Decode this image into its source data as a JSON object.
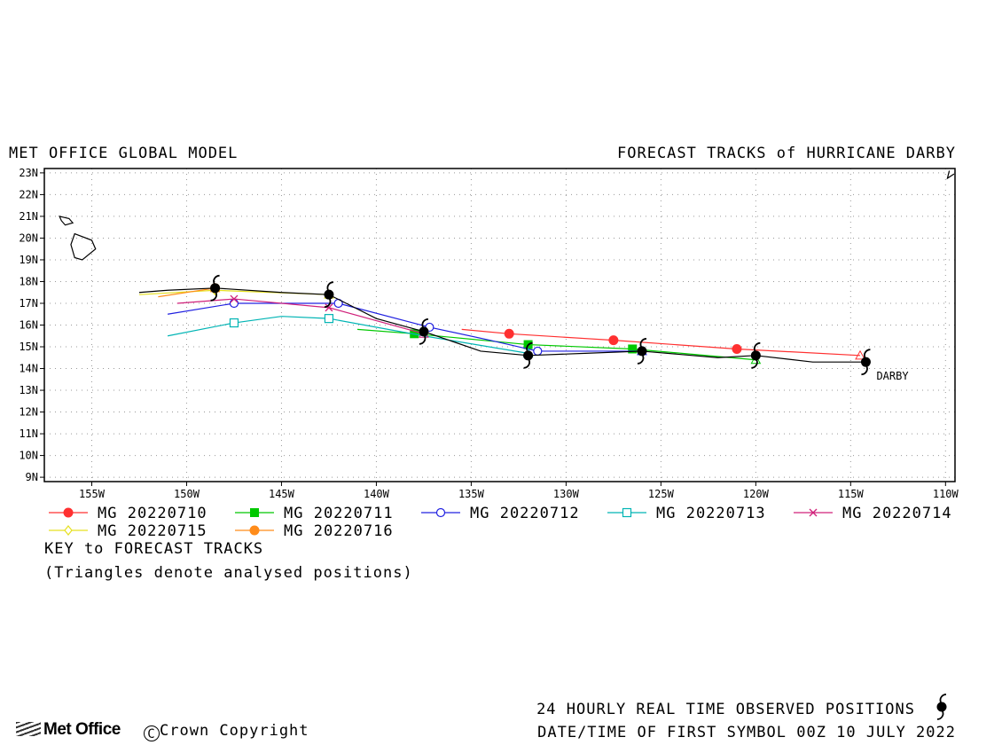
{
  "header": {
    "left_title": "MET OFFICE GLOBAL MODEL",
    "right_title": "FORECAST TRACKS of HURRICANE DARBY"
  },
  "map": {
    "lon_range": [
      -157.5,
      -109.5
    ],
    "lat_range": [
      8.8,
      23.2
    ],
    "lat_ticks": [
      "23N",
      "22N",
      "21N",
      "20N",
      "19N",
      "18N",
      "17N",
      "16N",
      "15N",
      "14N",
      "13N",
      "12N",
      "11N",
      "10N",
      "9N"
    ],
    "lon_ticks": [
      "155W",
      "150W",
      "145W",
      "140W",
      "135W",
      "130W",
      "125W",
      "120W",
      "115W",
      "110W"
    ],
    "grid": true,
    "storm_label": "DARBY"
  },
  "observed_track": {
    "color": "#000000",
    "points": [
      [
        -114.2,
        14.3
      ],
      [
        -117,
        14.3
      ],
      [
        -120,
        14.6
      ],
      [
        -122,
        14.5
      ],
      [
        -126,
        14.8
      ],
      [
        -129,
        14.7
      ],
      [
        -132,
        14.6
      ],
      [
        -134.5,
        14.8
      ],
      [
        -137.5,
        15.7
      ],
      [
        -140,
        16.3
      ],
      [
        -142.5,
        17.4
      ],
      [
        -145,
        17.5
      ],
      [
        -148.5,
        17.7
      ],
      [
        -151,
        17.6
      ],
      [
        -152.5,
        17.5
      ]
    ],
    "daily_symbols": [
      [
        -114.2,
        14.3
      ],
      [
        -120,
        14.6
      ],
      [
        -126,
        14.8
      ],
      [
        -132,
        14.6
      ],
      [
        -137.5,
        15.7
      ],
      [
        -142.5,
        17.4
      ],
      [
        -148.5,
        17.7
      ]
    ]
  },
  "forecasts": [
    {
      "name": "MG 20220710",
      "color": "#ff3030",
      "marker": "circle-filled",
      "points": [
        [
          -114.5,
          14.6
        ],
        [
          -121,
          14.9
        ],
        [
          -127.5,
          15.3
        ],
        [
          -133,
          15.6
        ],
        [
          -135.5,
          15.8
        ]
      ],
      "markers": [
        [
          -121,
          14.9
        ],
        [
          -127.5,
          15.3
        ],
        [
          -133,
          15.6
        ]
      ]
    },
    {
      "name": "MG 20220711",
      "color": "#00c800",
      "marker": "square-filled",
      "points": [
        [
          -120,
          14.4
        ],
        [
          -126.5,
          14.9
        ],
        [
          -132,
          15.1
        ],
        [
          -138,
          15.6
        ],
        [
          -141,
          15.8
        ]
      ],
      "markers": [
        [
          -126.5,
          14.9
        ],
        [
          -132,
          15.1
        ],
        [
          -138,
          15.6
        ]
      ]
    },
    {
      "name": "MG 20220712",
      "color": "#2020e0",
      "marker": "circle-open",
      "points": [
        [
          -126,
          14.8
        ],
        [
          -131.5,
          14.8
        ],
        [
          -134,
          15.3
        ],
        [
          -137.2,
          15.9
        ],
        [
          -142,
          17
        ],
        [
          -147.5,
          17
        ],
        [
          -151,
          16.5
        ]
      ],
      "markers": [
        [
          -131.5,
          14.8
        ],
        [
          -137.2,
          15.9
        ],
        [
          -142,
          17
        ],
        [
          -147.5,
          17
        ]
      ]
    },
    {
      "name": "MG 20220713",
      "color": "#00b4b4",
      "marker": "square-open",
      "points": [
        [
          -132,
          14.7
        ],
        [
          -137.5,
          15.5
        ],
        [
          -142.5,
          16.3
        ],
        [
          -145,
          16.4
        ],
        [
          -147.5,
          16.1
        ],
        [
          -151,
          15.5
        ]
      ],
      "markers": [
        [
          -142.5,
          16.3
        ],
        [
          -147.5,
          16.1
        ]
      ]
    },
    {
      "name": "MG 20220714",
      "color": "#d0207a",
      "marker": "x",
      "points": [
        [
          -137.5,
          15.6
        ],
        [
          -142.5,
          16.8
        ],
        [
          -147.5,
          17.2
        ],
        [
          -150.5,
          17
        ]
      ],
      "markers": [
        [
          -142.5,
          16.8
        ],
        [
          -147.5,
          17.2
        ]
      ]
    },
    {
      "name": "MG 20220715",
      "color": "#e6e020",
      "marker": "diamond-open",
      "points": [
        [
          -142.5,
          17.4
        ],
        [
          -148.5,
          17.6
        ],
        [
          -152.5,
          17.4
        ]
      ],
      "markers": [
        [
          -148.5,
          17.6
        ]
      ]
    },
    {
      "name": "MG 20220716",
      "color": "#ff8c1a",
      "marker": "circle-filled",
      "points": [
        [
          -148.5,
          17.7
        ],
        [
          -151.5,
          17.3
        ]
      ],
      "markers": [
        [
          -148.5,
          17.7
        ]
      ]
    }
  ],
  "key": {
    "title": "KEY to FORECAST TRACKS",
    "note": "(Triangles denote analysed positions)"
  },
  "footer": {
    "observed": "24 HOURLY REAL TIME OBSERVED POSITIONS",
    "datetime": "DATE/TIME OF FIRST SYMBOL 00Z 10 JULY 2022",
    "logo_text": "Met Office",
    "copyright": "Crown Copyright"
  }
}
